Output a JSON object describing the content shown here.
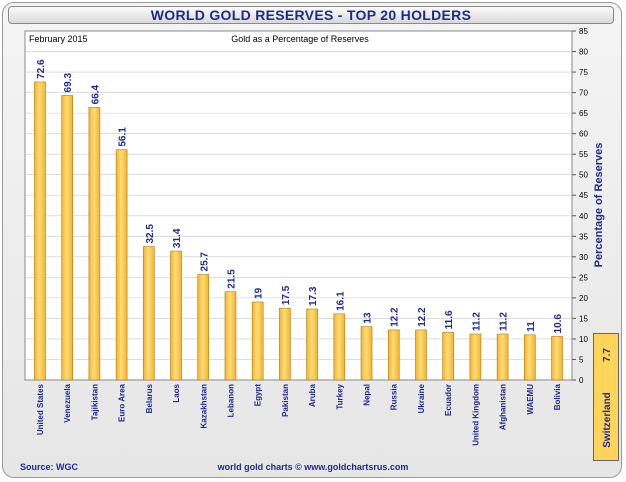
{
  "title": "WORLD GOLD RESERVES - TOP 20 HOLDERS",
  "source": "Source: WGC",
  "credit": "world gold charts © www.goldchartsrus.com",
  "colors": {
    "bar": "#f2b32e",
    "bar_light": "#ffdc78",
    "bar_edge": "#b07b12",
    "label": "#1f2a8c",
    "grid": "#c8c8c8"
  },
  "chart_data": {
    "type": "bar",
    "date_label": "February 2015",
    "subtitle": "Gold as a Percentage of Reserves",
    "ylabel": "Percentage of Reserves",
    "ylim": [
      0,
      85
    ],
    "yticks": [
      0,
      5,
      10,
      15,
      20,
      25,
      30,
      35,
      40,
      45,
      50,
      55,
      60,
      65,
      70,
      75,
      80,
      85
    ],
    "grid": true,
    "y_axis_side": "right",
    "categories": [
      "United States",
      "Venezuela",
      "Tajikistan",
      "Euro Area",
      "Belarus",
      "Laos",
      "Kazakhstan",
      "Lebanon",
      "Egypt",
      "Pakistan",
      "Aruba",
      "Turkey",
      "Nepal",
      "Russia",
      "Ukraine",
      "Ecuador",
      "United Kingdom",
      "Afghanistan",
      "WAEMU",
      "Bolivia"
    ],
    "values": [
      72.6,
      69.3,
      66.4,
      56.1,
      32.5,
      31.4,
      25.7,
      21.5,
      19,
      17.5,
      17.3,
      16.1,
      13,
      12.2,
      12.2,
      11.6,
      11.2,
      11.2,
      11,
      10.6
    ],
    "value_labels": [
      "72.6",
      "69.3",
      "66.4",
      "56.1",
      "32.5",
      "31.4",
      "25.7",
      "21.5",
      "19",
      "17.5",
      "17.3",
      "16.1",
      "13",
      "12.2",
      "12.2",
      "11.6",
      "11.2",
      "11.2",
      "11",
      "10.6"
    ],
    "annotation": {
      "name": "Switzerland",
      "value": "7.7"
    }
  }
}
